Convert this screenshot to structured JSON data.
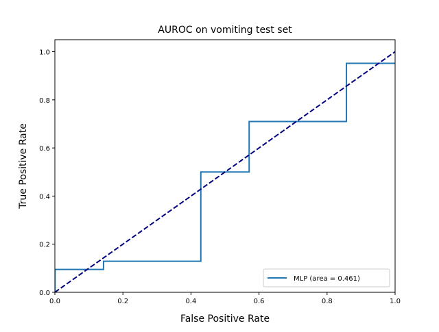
{
  "chart_data": {
    "type": "line",
    "title": "AUROC on vomiting test set",
    "xlabel": "False Positive Rate",
    "ylabel": "True Positive Rate",
    "xlim": [
      0.0,
      1.0
    ],
    "ylim": [
      0.0,
      1.05
    ],
    "xticks": [
      0.0,
      0.2,
      0.4,
      0.6,
      0.8,
      1.0
    ],
    "xtick_labels": [
      "0.0",
      "0.2",
      "0.4",
      "0.6",
      "0.8",
      "1.0"
    ],
    "yticks": [
      0.0,
      0.2,
      0.4,
      0.6,
      0.8,
      1.0
    ],
    "ytick_labels": [
      "0.0",
      "0.2",
      "0.4",
      "0.6",
      "0.8",
      "1.0"
    ],
    "grid": false,
    "legend_position": "lower right",
    "series": [
      {
        "name": "MLP (area = 0.461)",
        "color": "#1f77b4",
        "style": "solid",
        "step": true,
        "x": [
          0.0,
          0.0,
          0.143,
          0.143,
          0.429,
          0.429,
          0.571,
          0.571,
          0.857,
          0.857,
          1.0
        ],
        "y": [
          0.0,
          0.095,
          0.095,
          0.129,
          0.129,
          0.5,
          0.5,
          0.71,
          0.71,
          0.952,
          0.952
        ]
      },
      {
        "color": "#000080",
        "style": "dashed",
        "x": [
          0.0,
          1.0
        ],
        "y": [
          0.0,
          1.0
        ]
      }
    ]
  }
}
